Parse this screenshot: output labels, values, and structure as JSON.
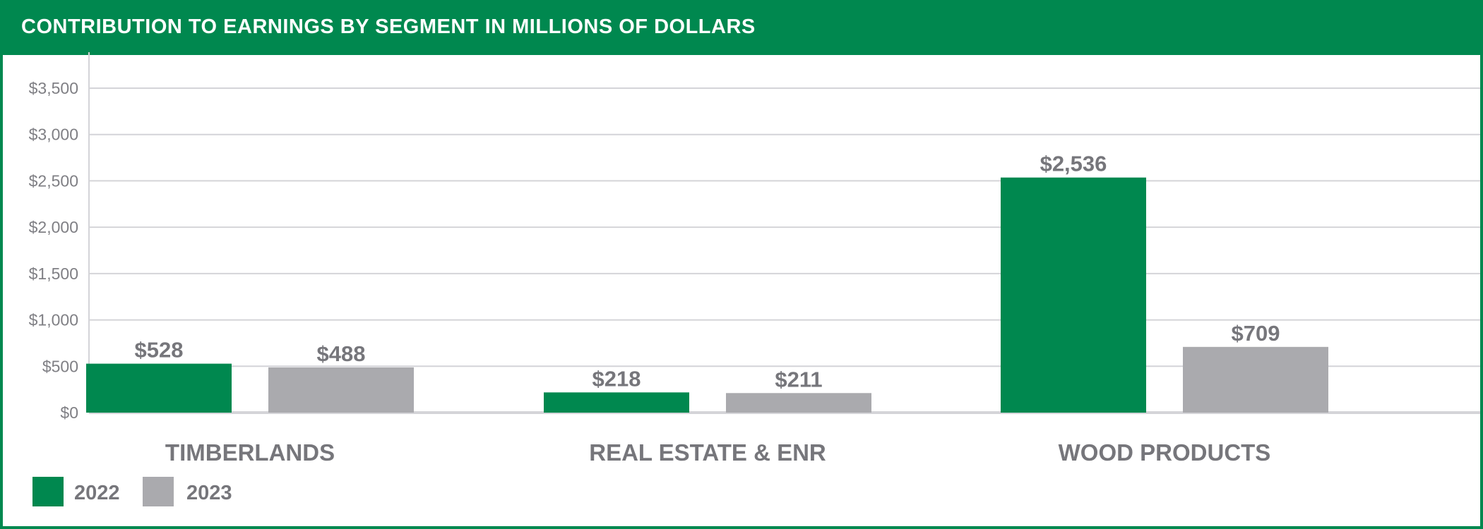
{
  "title": "CONTRIBUTION TO EARNINGS BY SEGMENT IN MILLIONS OF DOLLARS",
  "colors": {
    "brand_green": "#00884f",
    "series_2023_gray": "#aaaaae",
    "gridline": "#d4d4d8",
    "text_gray": "#76767b"
  },
  "chart_data": {
    "type": "bar",
    "title": "CONTRIBUTION TO EARNINGS BY SEGMENT IN MILLIONS OF DOLLARS",
    "xlabel": "",
    "ylabel": "",
    "categories": [
      "TIMBERLANDS",
      "REAL ESTATE & ENR",
      "WOOD PRODUCTS"
    ],
    "series": [
      {
        "name": "2022",
        "color": "#00884f",
        "values": [
          528,
          218,
          2536
        ],
        "labels": [
          "$528",
          "$218",
          "$2,536"
        ]
      },
      {
        "name": "2023",
        "color": "#aaaaae",
        "values": [
          488,
          211,
          709
        ],
        "labels": [
          "$488",
          "$211",
          "$709"
        ]
      }
    ],
    "ylim": [
      0,
      3500
    ],
    "yticks": [
      0,
      500,
      1000,
      1500,
      2000,
      2500,
      3000,
      3500
    ],
    "ytick_labels": [
      "$0",
      "$500",
      "$1,000",
      "$1,500",
      "$2,000",
      "$2,500",
      "$3,000",
      "$3,500"
    ],
    "grid": true,
    "legend_position": "bottom-left"
  }
}
